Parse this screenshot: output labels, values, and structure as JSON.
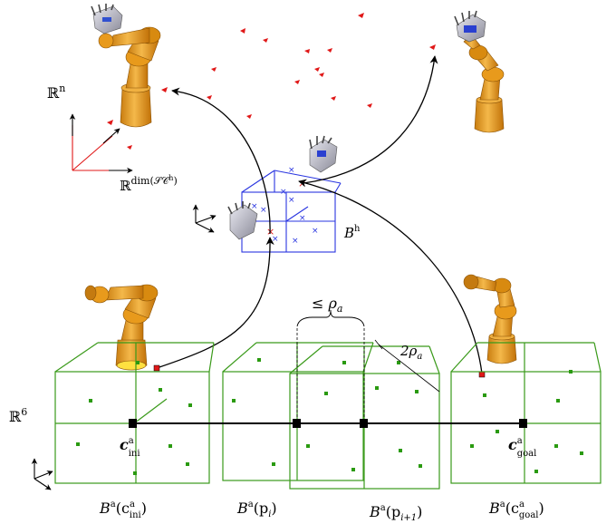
{
  "labels": {
    "rn_base": "ℝ",
    "rn_sup": "n",
    "rdim_base": "ℝ",
    "rdim_sup": "dim(𝒮𝒞",
    "rdim_sup_h": "h",
    "rdim_close": ")",
    "r6_base": "ℝ",
    "r6_sup": "6",
    "bh_base": "B",
    "bh_sup": "h",
    "le_rho": "≤ ρ",
    "le_rho_sub": "a",
    "two_rho": "2ρ",
    "two_rho_sub": "a",
    "c_ini_base": "c",
    "c_ini_sup": "a",
    "c_ini_sub": "ini",
    "c_goal_base": "c",
    "c_goal_sup": "a",
    "c_goal_sub": "goal",
    "ba_ini": "B",
    "ba_ini_sup": "a",
    "ba_ini_arg": "(c",
    "ba_ini_arg_sup": "a",
    "ba_ini_arg_sub": "ini",
    "ba_ini_close": ")",
    "ba_pi": "B",
    "ba_pi_sup": "a",
    "ba_pi_arg": "(p",
    "ba_pi_sub": "i",
    "ba_pi_close": ")",
    "ba_pi1": "B",
    "ba_pi1_sup": "a",
    "ba_pi1_arg": "(p",
    "ba_pi1_sub": "i+1",
    "ba_pi1_close": ")",
    "ba_goal": "B",
    "ba_goal_sup": "a",
    "ba_goal_arg": "(c",
    "ba_goal_arg_sup": "a",
    "ba_goal_arg_sub": "goal",
    "ba_goal_close": ")"
  },
  "colors": {
    "robot_orange": "#e8a020",
    "robot_dark": "#b06a08",
    "cube_green": "#3a9a1a",
    "cube_blue": "#2a36e0",
    "marker_red": "#e01818",
    "hand_gray": "#9a9aa8"
  },
  "icons": {
    "robot_arm": "robot-arm-icon",
    "robot_hand": "robot-hand-icon"
  }
}
